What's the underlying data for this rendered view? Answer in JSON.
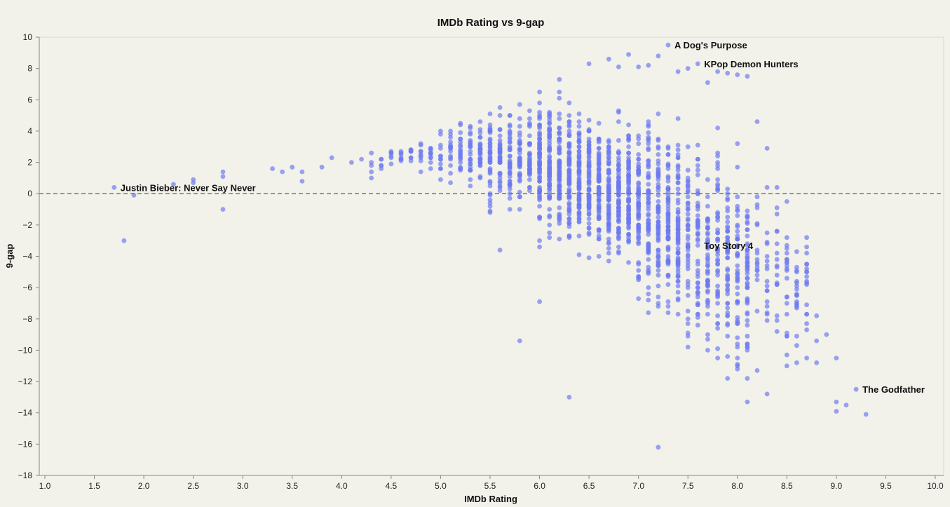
{
  "chart_data": {
    "type": "scatter",
    "title": "IMDb Rating vs 9-gap",
    "xlabel": "IMDb Rating",
    "ylabel": "9-gap",
    "xlim": [
      1.0,
      10.0
    ],
    "ylim": [
      -18,
      10
    ],
    "x_ticks": [
      1.0,
      1.5,
      2.0,
      2.5,
      3.0,
      3.5,
      4.0,
      4.5,
      5.0,
      5.5,
      6.0,
      6.5,
      7.0,
      7.5,
      8.0,
      8.5,
      9.0,
      9.5,
      10.0
    ],
    "x_tick_labels": [
      "1.0",
      "1.5",
      "2.0",
      "2.5",
      "3.0",
      "3.5",
      "4.0",
      "4.5",
      "5.0",
      "5.5",
      "6.0",
      "6.5",
      "7.0",
      "7.5",
      "8.0",
      "8.5",
      "9.0",
      "9.5",
      "10.0"
    ],
    "y_ticks": [
      10,
      8,
      6,
      4,
      2,
      0,
      -2,
      -4,
      -6,
      -8,
      -10,
      -12,
      -14,
      -16,
      -18
    ],
    "y_tick_labels": [
      "10",
      "8",
      "6",
      "4",
      "2",
      "0",
      "−2",
      "−4",
      "−6",
      "−8",
      "−10",
      "−12",
      "−14",
      "−16",
      "−18"
    ],
    "grid": false,
    "reference_line": {
      "y": 0,
      "style": "dashed"
    },
    "point_color": "#6c79f0",
    "labeled_points": [
      {
        "x": 7.3,
        "y": 9.5,
        "label": "A Dog's Purpose"
      },
      {
        "x": 7.6,
        "y": 8.3,
        "label": "KPop Demon Hunters"
      },
      {
        "x": 1.7,
        "y": 0.4,
        "label": "Justin Bieber: Never Say Never"
      },
      {
        "x": 7.6,
        "y": -3.3,
        "label": "Toy Story 4"
      },
      {
        "x": 9.2,
        "y": -12.5,
        "label": "The Godfather"
      }
    ],
    "outlier_points": [
      [
        1.8,
        -3.0
      ],
      [
        1.9,
        -0.1
      ],
      [
        2.3,
        0.6
      ],
      [
        2.5,
        0.9
      ],
      [
        2.5,
        0.7
      ],
      [
        2.8,
        1.4
      ],
      [
        2.8,
        1.1
      ],
      [
        2.8,
        -1.0
      ],
      [
        3.3,
        1.6
      ],
      [
        3.4,
        1.4
      ],
      [
        3.5,
        1.7
      ],
      [
        3.6,
        1.4
      ],
      [
        3.6,
        0.8
      ],
      [
        3.8,
        1.7
      ],
      [
        3.9,
        2.3
      ],
      [
        4.1,
        2.0
      ],
      [
        4.2,
        2.2
      ],
      [
        4.3,
        2.6
      ],
      [
        5.6,
        -3.6
      ],
      [
        5.8,
        -9.4
      ],
      [
        6.0,
        -6.9
      ],
      [
        6.3,
        -13.0
      ],
      [
        7.2,
        -16.2
      ],
      [
        7.2,
        8.8
      ],
      [
        6.9,
        8.9
      ],
      [
        9.0,
        -13.3
      ],
      [
        9.0,
        -13.9
      ],
      [
        9.1,
        -13.5
      ],
      [
        9.3,
        -14.1
      ],
      [
        9.0,
        -10.5
      ],
      [
        8.9,
        -9.0
      ],
      [
        8.8,
        -7.8
      ],
      [
        8.8,
        -9.4
      ],
      [
        8.8,
        -10.8
      ],
      [
        8.7,
        -7.1
      ],
      [
        8.7,
        -8.3
      ],
      [
        8.6,
        -5.6
      ],
      [
        8.6,
        -6.5
      ],
      [
        8.6,
        -9.1
      ],
      [
        8.5,
        -3.8
      ],
      [
        8.5,
        -4.9
      ],
      [
        8.5,
        -7.0
      ],
      [
        8.5,
        -8.9
      ],
      [
        8.5,
        -10.3
      ],
      [
        8.5,
        -11.0
      ],
      [
        8.3,
        -12.8
      ],
      [
        8.1,
        -13.3
      ],
      [
        8.1,
        -11.8
      ],
      [
        7.9,
        -11.8
      ],
      [
        8.2,
        -11.3
      ],
      [
        8.3,
        2.9
      ],
      [
        8.2,
        4.6
      ],
      [
        8.1,
        7.5
      ],
      [
        8.0,
        7.6
      ],
      [
        7.9,
        7.7
      ],
      [
        7.8,
        7.8
      ],
      [
        7.7,
        7.1
      ],
      [
        7.5,
        8.0
      ],
      [
        7.4,
        7.8
      ],
      [
        7.1,
        8.2
      ],
      [
        7.0,
        8.1
      ],
      [
        6.8,
        8.1
      ],
      [
        6.7,
        8.6
      ],
      [
        6.5,
        8.3
      ],
      [
        6.2,
        7.3
      ],
      [
        8.4,
        0.4
      ],
      [
        8.3,
        0.4
      ]
    ],
    "cloud_note": "dense bulk of points spanning IMDb ratings about 4.3 to 8.7, concentrated between 5.5 and 8.2"
  }
}
